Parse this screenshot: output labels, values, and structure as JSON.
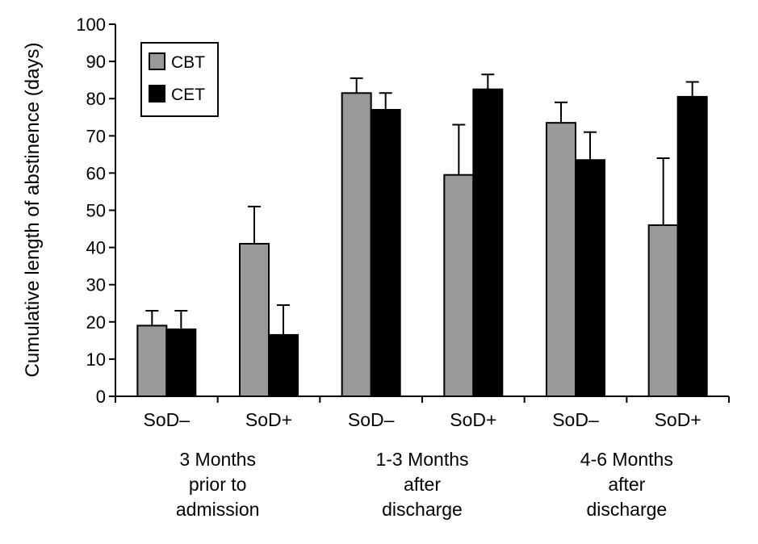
{
  "chart_data": {
    "type": "bar",
    "ylabel": "Cumulative length of abstinence (days)",
    "ylim": [
      0,
      100
    ],
    "yticks": [
      0,
      10,
      20,
      30,
      40,
      50,
      60,
      70,
      80,
      90,
      100
    ],
    "categories": [
      "SoD–",
      "SoD+",
      "SoD–",
      "SoD+",
      "SoD–",
      "SoD+"
    ],
    "groups": [
      {
        "lines": [
          "3 Months",
          "prior to",
          "admission"
        ]
      },
      {
        "lines": [
          "1-3 Months",
          "after",
          "discharge"
        ]
      },
      {
        "lines": [
          "4-6 Months",
          "after",
          "discharge"
        ]
      }
    ],
    "series": [
      {
        "name": "CBT",
        "color": "#999999",
        "values": [
          19,
          41,
          81.5,
          59.5,
          73.5,
          46
        ],
        "errors": [
          4,
          10,
          4,
          13.5,
          5.5,
          18
        ]
      },
      {
        "name": "CET",
        "color": "#000000",
        "values": [
          18,
          16.5,
          77,
          82.5,
          63.5,
          80.5
        ],
        "errors": [
          5,
          8,
          4.5,
          4,
          7.5,
          4
        ]
      }
    ],
    "legend": "top-left",
    "grid": false
  }
}
